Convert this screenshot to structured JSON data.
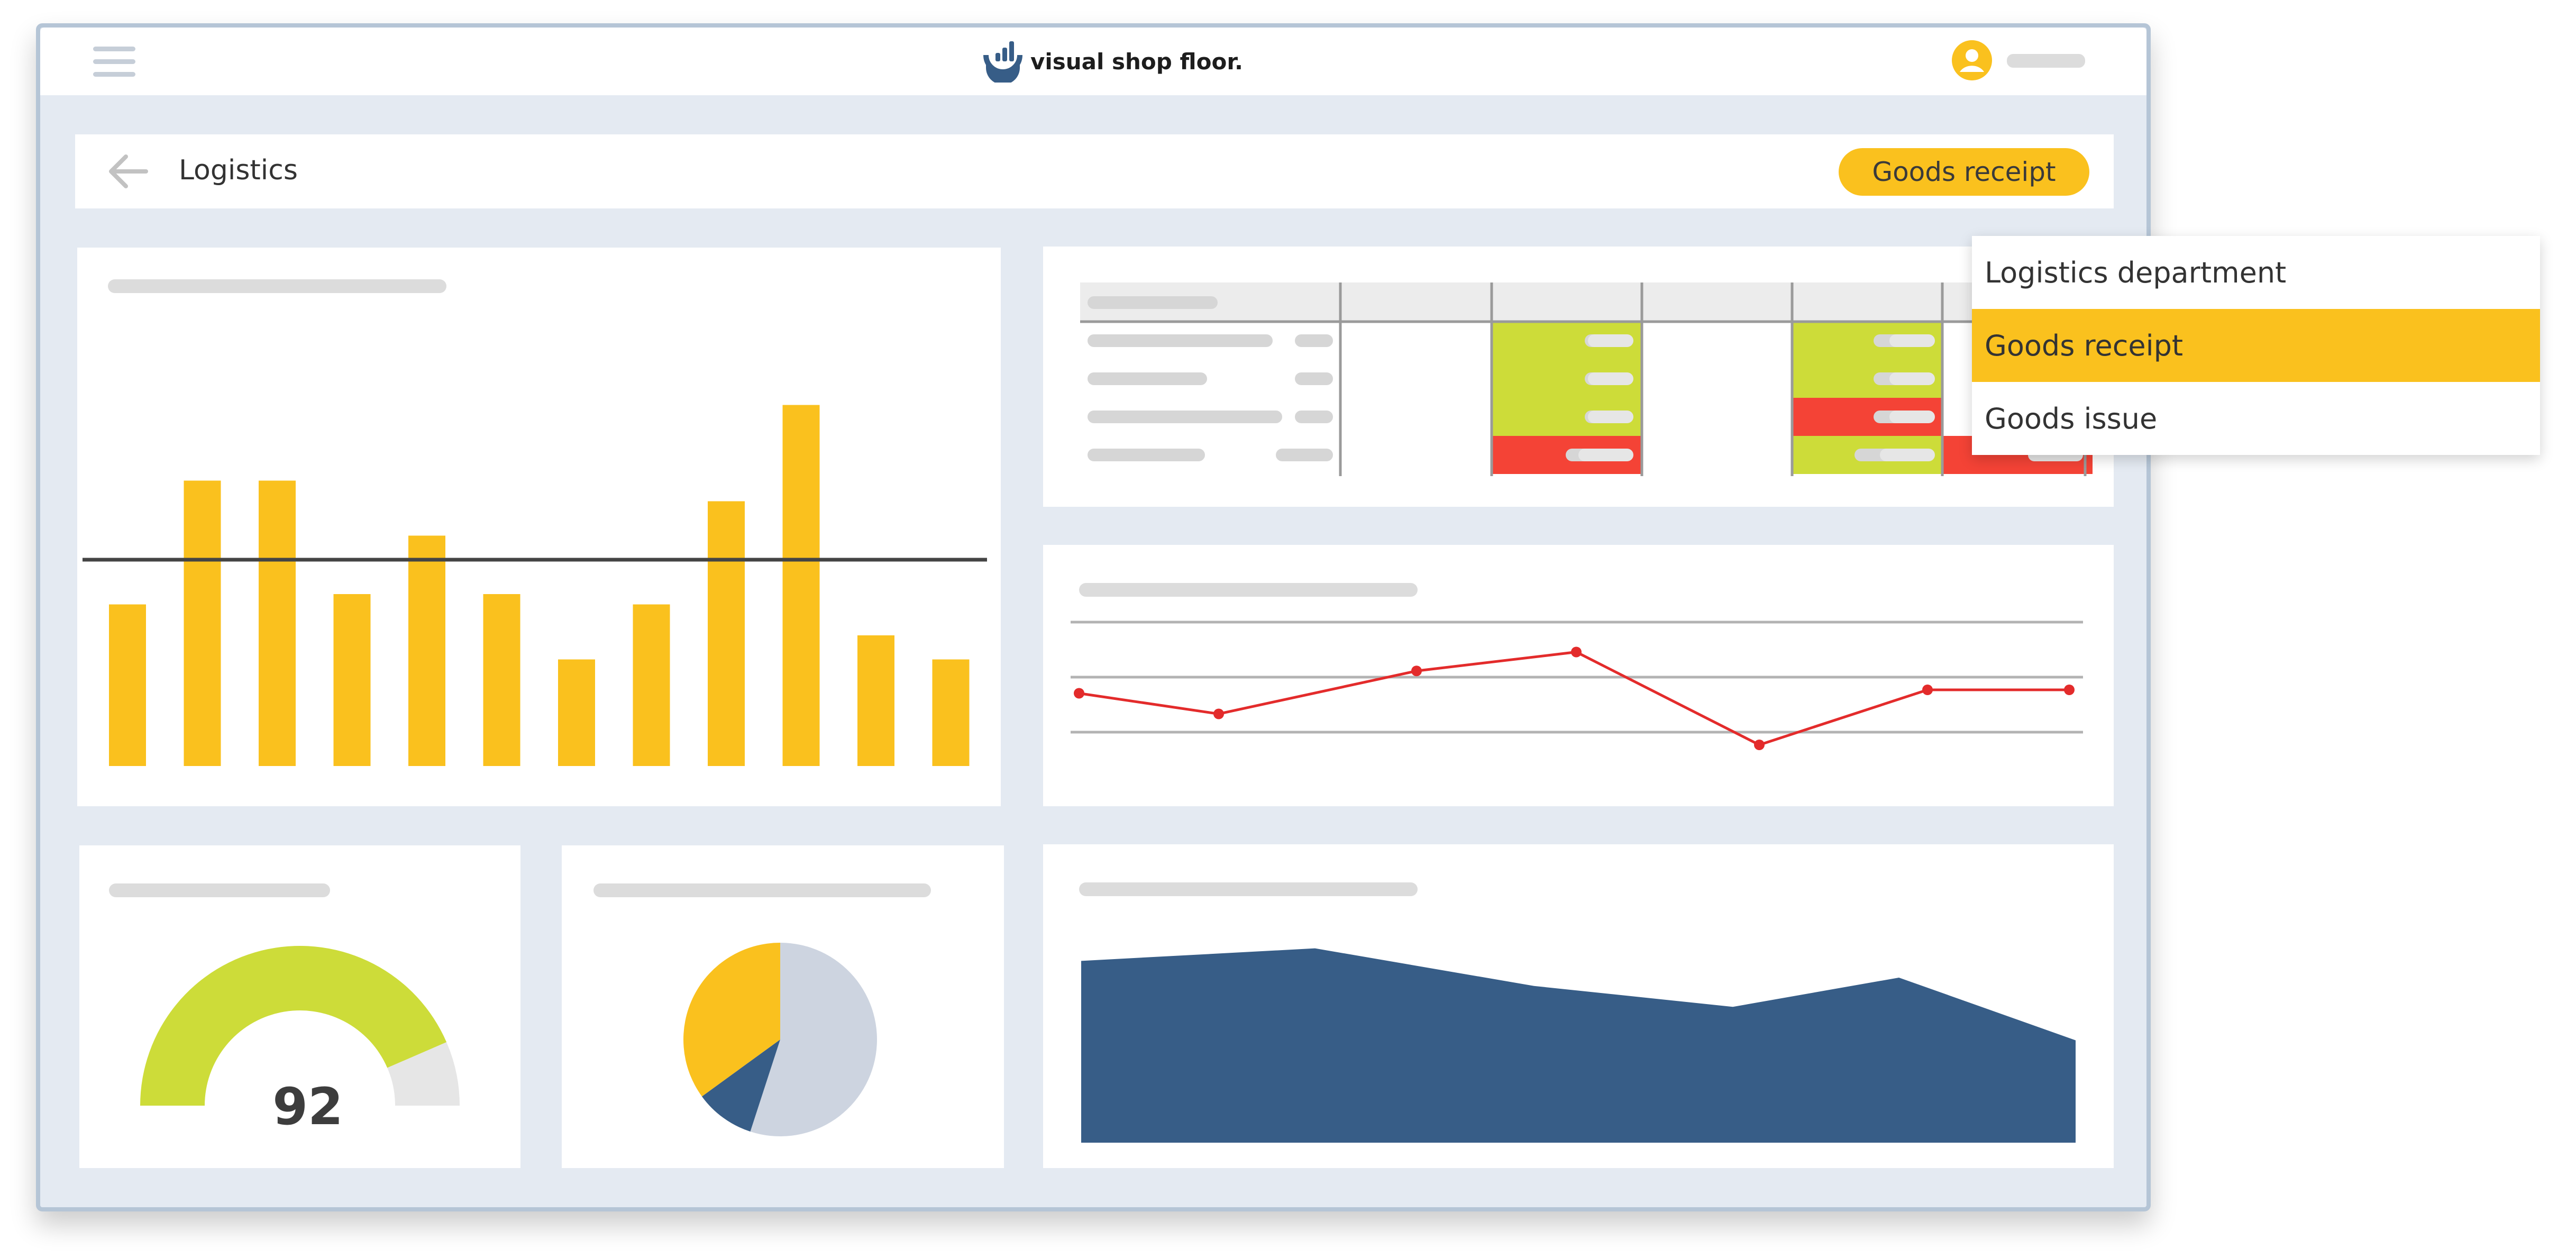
{
  "app": {
    "brand": "visual shop floor.",
    "colors": {
      "accent": "#fac11e",
      "green": "#cddc39",
      "red": "#f44336",
      "navy": "#375d87",
      "line_red": "#e32b2b",
      "frame_bg": "#e4eaf2"
    }
  },
  "topbar": {
    "menu_icon": "hamburger-icon",
    "user_icon": "user-avatar-icon"
  },
  "page_header": {
    "back_icon": "arrow-left-icon",
    "title": "Logistics",
    "selected_filter": "Goods receipt"
  },
  "dropdown": {
    "options": [
      {
        "label": "Logistics department",
        "selected": false
      },
      {
        "label": "Goods receipt",
        "selected": true
      },
      {
        "label": "Goods issue",
        "selected": false
      }
    ]
  },
  "table_widget": {
    "status_grid": [
      [
        "green",
        "green",
        "",
        "",
        ""
      ],
      [
        "green",
        "green",
        "",
        "",
        ""
      ],
      [
        "green",
        "red",
        "",
        "",
        ""
      ],
      [
        "red",
        "green",
        "red",
        "",
        ""
      ]
    ]
  },
  "gauge_widget": {
    "value": "92",
    "fill_fraction": 0.87
  },
  "chart_data": [
    {
      "type": "bar",
      "values": [
        47,
        83,
        83,
        50,
        67,
        50,
        31,
        47,
        77,
        105,
        38,
        31
      ],
      "reference_line": 60,
      "ylim": [
        0,
        120
      ]
    },
    {
      "type": "line",
      "values": [
        50,
        38,
        63,
        74,
        20,
        52,
        52
      ],
      "ylim": [
        0,
        100
      ]
    },
    {
      "type": "pie",
      "slices": [
        {
          "color": "#cdd4e0",
          "value": 55
        },
        {
          "color": "#375d87",
          "value": 10
        },
        {
          "color": "#fac11e",
          "value": 35
        }
      ]
    },
    {
      "type": "area",
      "values": [
        87,
        93,
        75,
        65,
        79,
        49
      ],
      "ylim": [
        0,
        100
      ]
    }
  ]
}
